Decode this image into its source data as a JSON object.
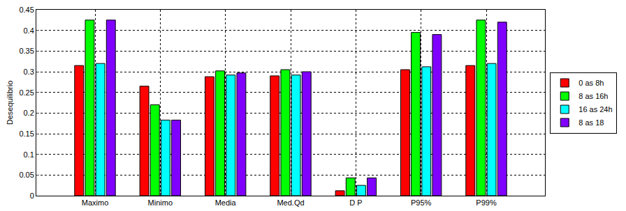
{
  "chart_data": {
    "type": "bar",
    "y_label": "Desequilibrio",
    "categories": [
      "Maximo",
      "Minimo",
      "Media",
      "Med.Qd",
      "D P",
      "P95%",
      "P99%"
    ],
    "series": [
      {
        "name": "0 as 8h",
        "color": "#ff0000",
        "values": [
          0.315,
          0.265,
          0.288,
          0.29,
          0.012,
          0.305,
          0.315
        ]
      },
      {
        "name": "8 as 16h",
        "color": "#00ff00",
        "values": [
          0.425,
          0.22,
          0.302,
          0.305,
          0.043,
          0.395,
          0.425
        ]
      },
      {
        "name": "16 as 24h",
        "color": "#00ffff",
        "values": [
          0.32,
          0.183,
          0.292,
          0.292,
          0.025,
          0.312,
          0.32
        ]
      },
      {
        "name": "8 as 18",
        "color": "#8000ff",
        "values": [
          0.425,
          0.183,
          0.297,
          0.3,
          0.043,
          0.39,
          0.42
        ]
      }
    ],
    "ylim": [
      0,
      0.45
    ],
    "yticks": [
      0,
      0.05,
      0.1,
      0.15,
      0.2,
      0.25,
      0.3,
      0.35,
      0.4,
      0.45
    ],
    "grid": true,
    "legend": "right"
  }
}
